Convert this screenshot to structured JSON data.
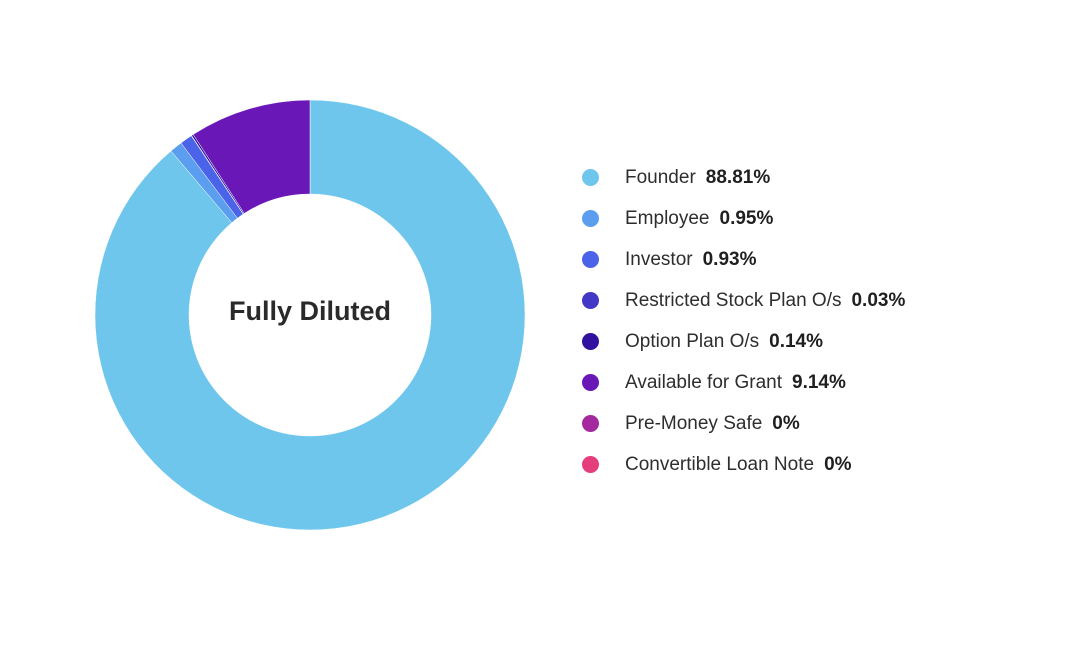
{
  "chart_data": {
    "type": "pie",
    "center_label": "Fully Diluted",
    "series": [
      {
        "name": "Founder",
        "value": 88.81,
        "label": "88.81%",
        "color": "#6ec6ec"
      },
      {
        "name": "Employee",
        "value": 0.95,
        "label": "0.95%",
        "color": "#5b9ef0"
      },
      {
        "name": "Investor",
        "value": 0.93,
        "label": "0.93%",
        "color": "#4a63e8"
      },
      {
        "name": "Restricted Stock Plan O/s",
        "value": 0.03,
        "label": "0.03%",
        "color": "#4338c6"
      },
      {
        "name": "Option Plan O/s",
        "value": 0.14,
        "label": "0.14%",
        "color": "#30129f"
      },
      {
        "name": "Available for Grant",
        "value": 9.14,
        "label": "9.14%",
        "color": "#6a17b8"
      },
      {
        "name": "Pre-Money Safe",
        "value": 0,
        "label": "0%",
        "color": "#a4299f"
      },
      {
        "name": "Convertible Loan Note",
        "value": 0,
        "label": "0%",
        "color": "#e53e7c"
      }
    ],
    "legend_position": "right"
  }
}
